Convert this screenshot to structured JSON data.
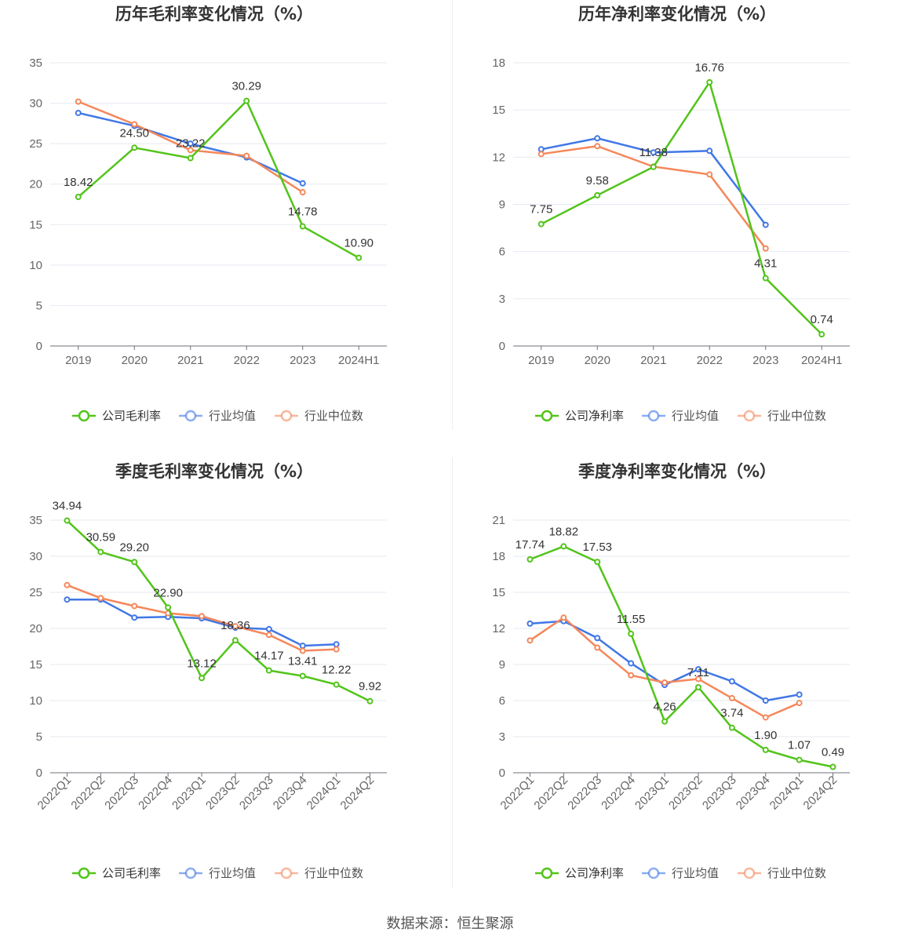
{
  "colors": {
    "company": "#52c41a",
    "avg": "#4177e6",
    "median": "#f5875a"
  },
  "source": "数据来源：恒生聚源",
  "chart_data": [
    {
      "type": "line",
      "title": "历年毛利率变化情况（%）",
      "categories": [
        "2019",
        "2020",
        "2021",
        "2022",
        "2023",
        "2024H1"
      ],
      "ylim": [
        0,
        35
      ],
      "yticks": [
        0,
        5,
        10,
        15,
        20,
        25,
        30,
        35
      ],
      "rotate_x": false,
      "series": [
        {
          "name": "公司毛利率",
          "key": "company",
          "values": [
            18.42,
            24.5,
            23.22,
            30.29,
            14.78,
            10.9
          ],
          "labels": [
            "18.42",
            "24.50",
            "23.22",
            "30.29",
            "14.78",
            "10.90"
          ]
        },
        {
          "name": "行业均值",
          "key": "avg",
          "values": [
            28.8,
            27.2,
            25.0,
            23.3,
            20.1,
            null
          ]
        },
        {
          "name": "行业中位数",
          "key": "median",
          "values": [
            30.2,
            27.4,
            24.2,
            23.5,
            19.0,
            null
          ]
        }
      ]
    },
    {
      "type": "line",
      "title": "历年净利率变化情况（%）",
      "categories": [
        "2019",
        "2020",
        "2021",
        "2022",
        "2023",
        "2024H1"
      ],
      "ylim": [
        0,
        18
      ],
      "yticks": [
        0,
        3,
        6,
        9,
        12,
        15,
        18
      ],
      "rotate_x": false,
      "series": [
        {
          "name": "公司净利率",
          "key": "company",
          "values": [
            7.75,
            9.58,
            11.38,
            16.76,
            4.31,
            0.74
          ],
          "labels": [
            "7.75",
            "9.58",
            "11.38",
            "16.76",
            "4.31",
            "0.74"
          ]
        },
        {
          "name": "行业均值",
          "key": "avg",
          "values": [
            12.5,
            13.2,
            12.3,
            12.4,
            7.7,
            null
          ]
        },
        {
          "name": "行业中位数",
          "key": "median",
          "values": [
            12.2,
            12.7,
            11.4,
            10.9,
            6.2,
            null
          ]
        }
      ]
    },
    {
      "type": "line",
      "title": "季度毛利率变化情况（%）",
      "categories": [
        "2022Q1",
        "2022Q2",
        "2022Q3",
        "2022Q4",
        "2023Q1",
        "2023Q2",
        "2023Q3",
        "2023Q4",
        "2024Q1",
        "2024Q2"
      ],
      "ylim": [
        0,
        35
      ],
      "yticks": [
        0,
        5,
        10,
        15,
        20,
        25,
        30,
        35
      ],
      "rotate_x": true,
      "series": [
        {
          "name": "公司毛利率",
          "key": "company",
          "values": [
            34.94,
            30.59,
            29.2,
            22.9,
            13.12,
            18.36,
            14.17,
            13.41,
            12.22,
            9.92
          ],
          "labels": [
            "34.94",
            "30.59",
            "29.20",
            "22.90",
            "13.12",
            "18.36",
            "14.17",
            "13.41",
            "12.22",
            "9.92"
          ]
        },
        {
          "name": "行业均值",
          "key": "avg",
          "values": [
            24.0,
            24.0,
            21.5,
            21.6,
            21.4,
            20.1,
            19.9,
            17.6,
            17.8,
            null
          ]
        },
        {
          "name": "行业中位数",
          "key": "median",
          "values": [
            26.0,
            24.2,
            23.1,
            22.1,
            21.7,
            20.3,
            19.1,
            16.9,
            17.1,
            null
          ]
        }
      ]
    },
    {
      "type": "line",
      "title": "季度净利率变化情况（%）",
      "categories": [
        "2022Q1",
        "2022Q2",
        "2022Q3",
        "2022Q4",
        "2023Q1",
        "2023Q2",
        "2023Q3",
        "2023Q4",
        "2024Q1",
        "2024Q2"
      ],
      "ylim": [
        0,
        21
      ],
      "yticks": [
        0,
        3,
        6,
        9,
        12,
        15,
        18,
        21
      ],
      "rotate_x": true,
      "series": [
        {
          "name": "公司净利率",
          "key": "company",
          "values": [
            17.74,
            18.82,
            17.53,
            11.55,
            4.26,
            7.11,
            3.74,
            1.9,
            1.07,
            0.49
          ],
          "labels": [
            "17.74",
            "18.82",
            "17.53",
            "11.55",
            "4.26",
            "7.11",
            "3.74",
            "1.90",
            "1.07",
            "0.49"
          ]
        },
        {
          "name": "行业均值",
          "key": "avg",
          "values": [
            12.4,
            12.6,
            11.2,
            9.1,
            7.3,
            8.6,
            7.6,
            6.0,
            6.5,
            null
          ]
        },
        {
          "name": "行业中位数",
          "key": "median",
          "values": [
            11.0,
            12.9,
            10.4,
            8.1,
            7.5,
            7.8,
            6.2,
            4.6,
            5.8,
            null
          ]
        }
      ]
    }
  ]
}
